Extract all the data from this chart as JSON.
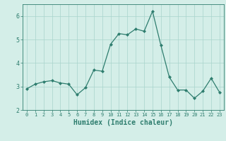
{
  "x": [
    0,
    1,
    2,
    3,
    4,
    5,
    6,
    7,
    8,
    9,
    10,
    11,
    12,
    13,
    14,
    15,
    16,
    17,
    18,
    19,
    20,
    21,
    22,
    23
  ],
  "y": [
    2.9,
    3.1,
    3.2,
    3.25,
    3.15,
    3.1,
    2.65,
    2.95,
    3.7,
    3.65,
    4.8,
    5.25,
    5.2,
    5.45,
    5.35,
    6.2,
    4.75,
    3.4,
    2.85,
    2.85,
    2.5,
    2.8,
    3.35,
    2.75
  ],
  "line_color": "#2e7d6e",
  "marker": "D",
  "marker_size": 2.0,
  "bg_color": "#d4eee8",
  "grid_color": "#a8d4cc",
  "tick_color": "#2e7d6e",
  "spine_color": "#2e7d6e",
  "xlabel": "Humidex (Indice chaleur)",
  "xlabel_fontsize": 7,
  "tick_fontsize_x": 5,
  "tick_fontsize_y": 6,
  "ylim": [
    2.0,
    6.5
  ],
  "yticks": [
    2,
    3,
    4,
    5,
    6
  ],
  "xticks": [
    0,
    1,
    2,
    3,
    4,
    5,
    6,
    7,
    8,
    9,
    10,
    11,
    12,
    13,
    14,
    15,
    16,
    17,
    18,
    19,
    20,
    21,
    22,
    23
  ],
  "linewidth": 0.9
}
